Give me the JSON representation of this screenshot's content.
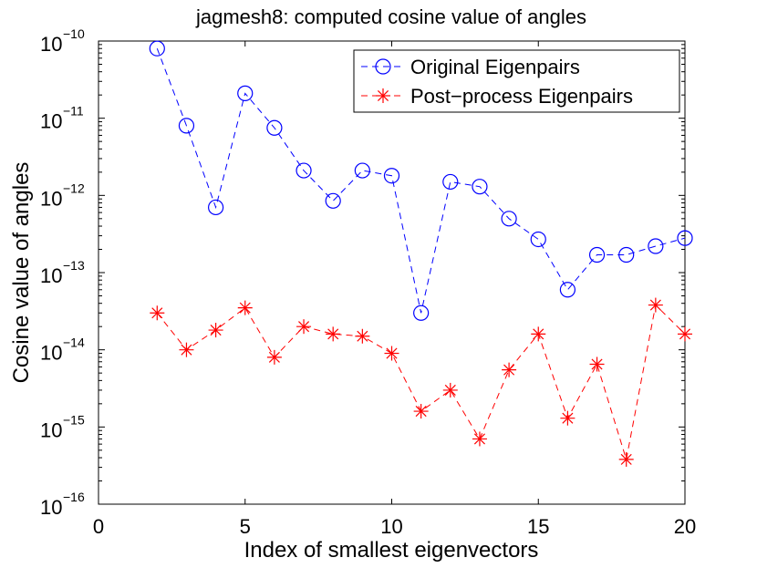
{
  "chart_data": {
    "type": "line",
    "yscale": "log",
    "title": "jagmesh8: computed cosine value of angles",
    "xlabel": "Index of smallest eigenvectors",
    "ylabel": "Cosine value of angles",
    "xlim": [
      0,
      20
    ],
    "ylim": [
      1e-16,
      1e-10
    ],
    "xticks": [
      0,
      5,
      10,
      15,
      20
    ],
    "xtick_labels": [
      "0",
      "5",
      "10",
      "15",
      "20"
    ],
    "yticks": [
      -16,
      -15,
      -14,
      -13,
      -12,
      -11,
      -10
    ],
    "ytick_base": "10",
    "ytick_exponents": [
      "−16",
      "−15",
      "−14",
      "−13",
      "−12",
      "−11",
      "−10"
    ],
    "legend_position": "top-right",
    "series": [
      {
        "name": "Original Eigenpairs",
        "color": "#0000ff",
        "marker": "circle",
        "linestyle": "dashed",
        "x": [
          2,
          3,
          4,
          5,
          6,
          7,
          8,
          9,
          10,
          11,
          12,
          13,
          14,
          15,
          16,
          17,
          18,
          19,
          20
        ],
        "values": [
          8e-11,
          8e-12,
          7e-13,
          2.1e-11,
          7.5e-12,
          2.1e-12,
          8.5e-13,
          2.1e-12,
          1.8e-12,
          3e-14,
          1.5e-12,
          1.3e-12,
          5e-13,
          2.7e-13,
          6e-14,
          1.7e-13,
          1.7e-13,
          2.2e-13,
          2.8e-13
        ]
      },
      {
        "name": "Post−process Eigenpairs",
        "color": "#ff0000",
        "marker": "asterisk",
        "linestyle": "dashed",
        "x": [
          2,
          3,
          4,
          5,
          6,
          7,
          8,
          9,
          10,
          11,
          12,
          13,
          14,
          15,
          16,
          17,
          18,
          19,
          20
        ],
        "values": [
          3e-14,
          1e-14,
          1.8e-14,
          3.5e-14,
          8e-15,
          2e-14,
          1.6e-14,
          1.5e-14,
          9e-15,
          1.6e-15,
          3e-15,
          7e-16,
          5.5e-15,
          1.6e-14,
          1.3e-15,
          6.5e-15,
          3.8e-16,
          3.8e-14,
          1.6e-14
        ]
      }
    ]
  }
}
